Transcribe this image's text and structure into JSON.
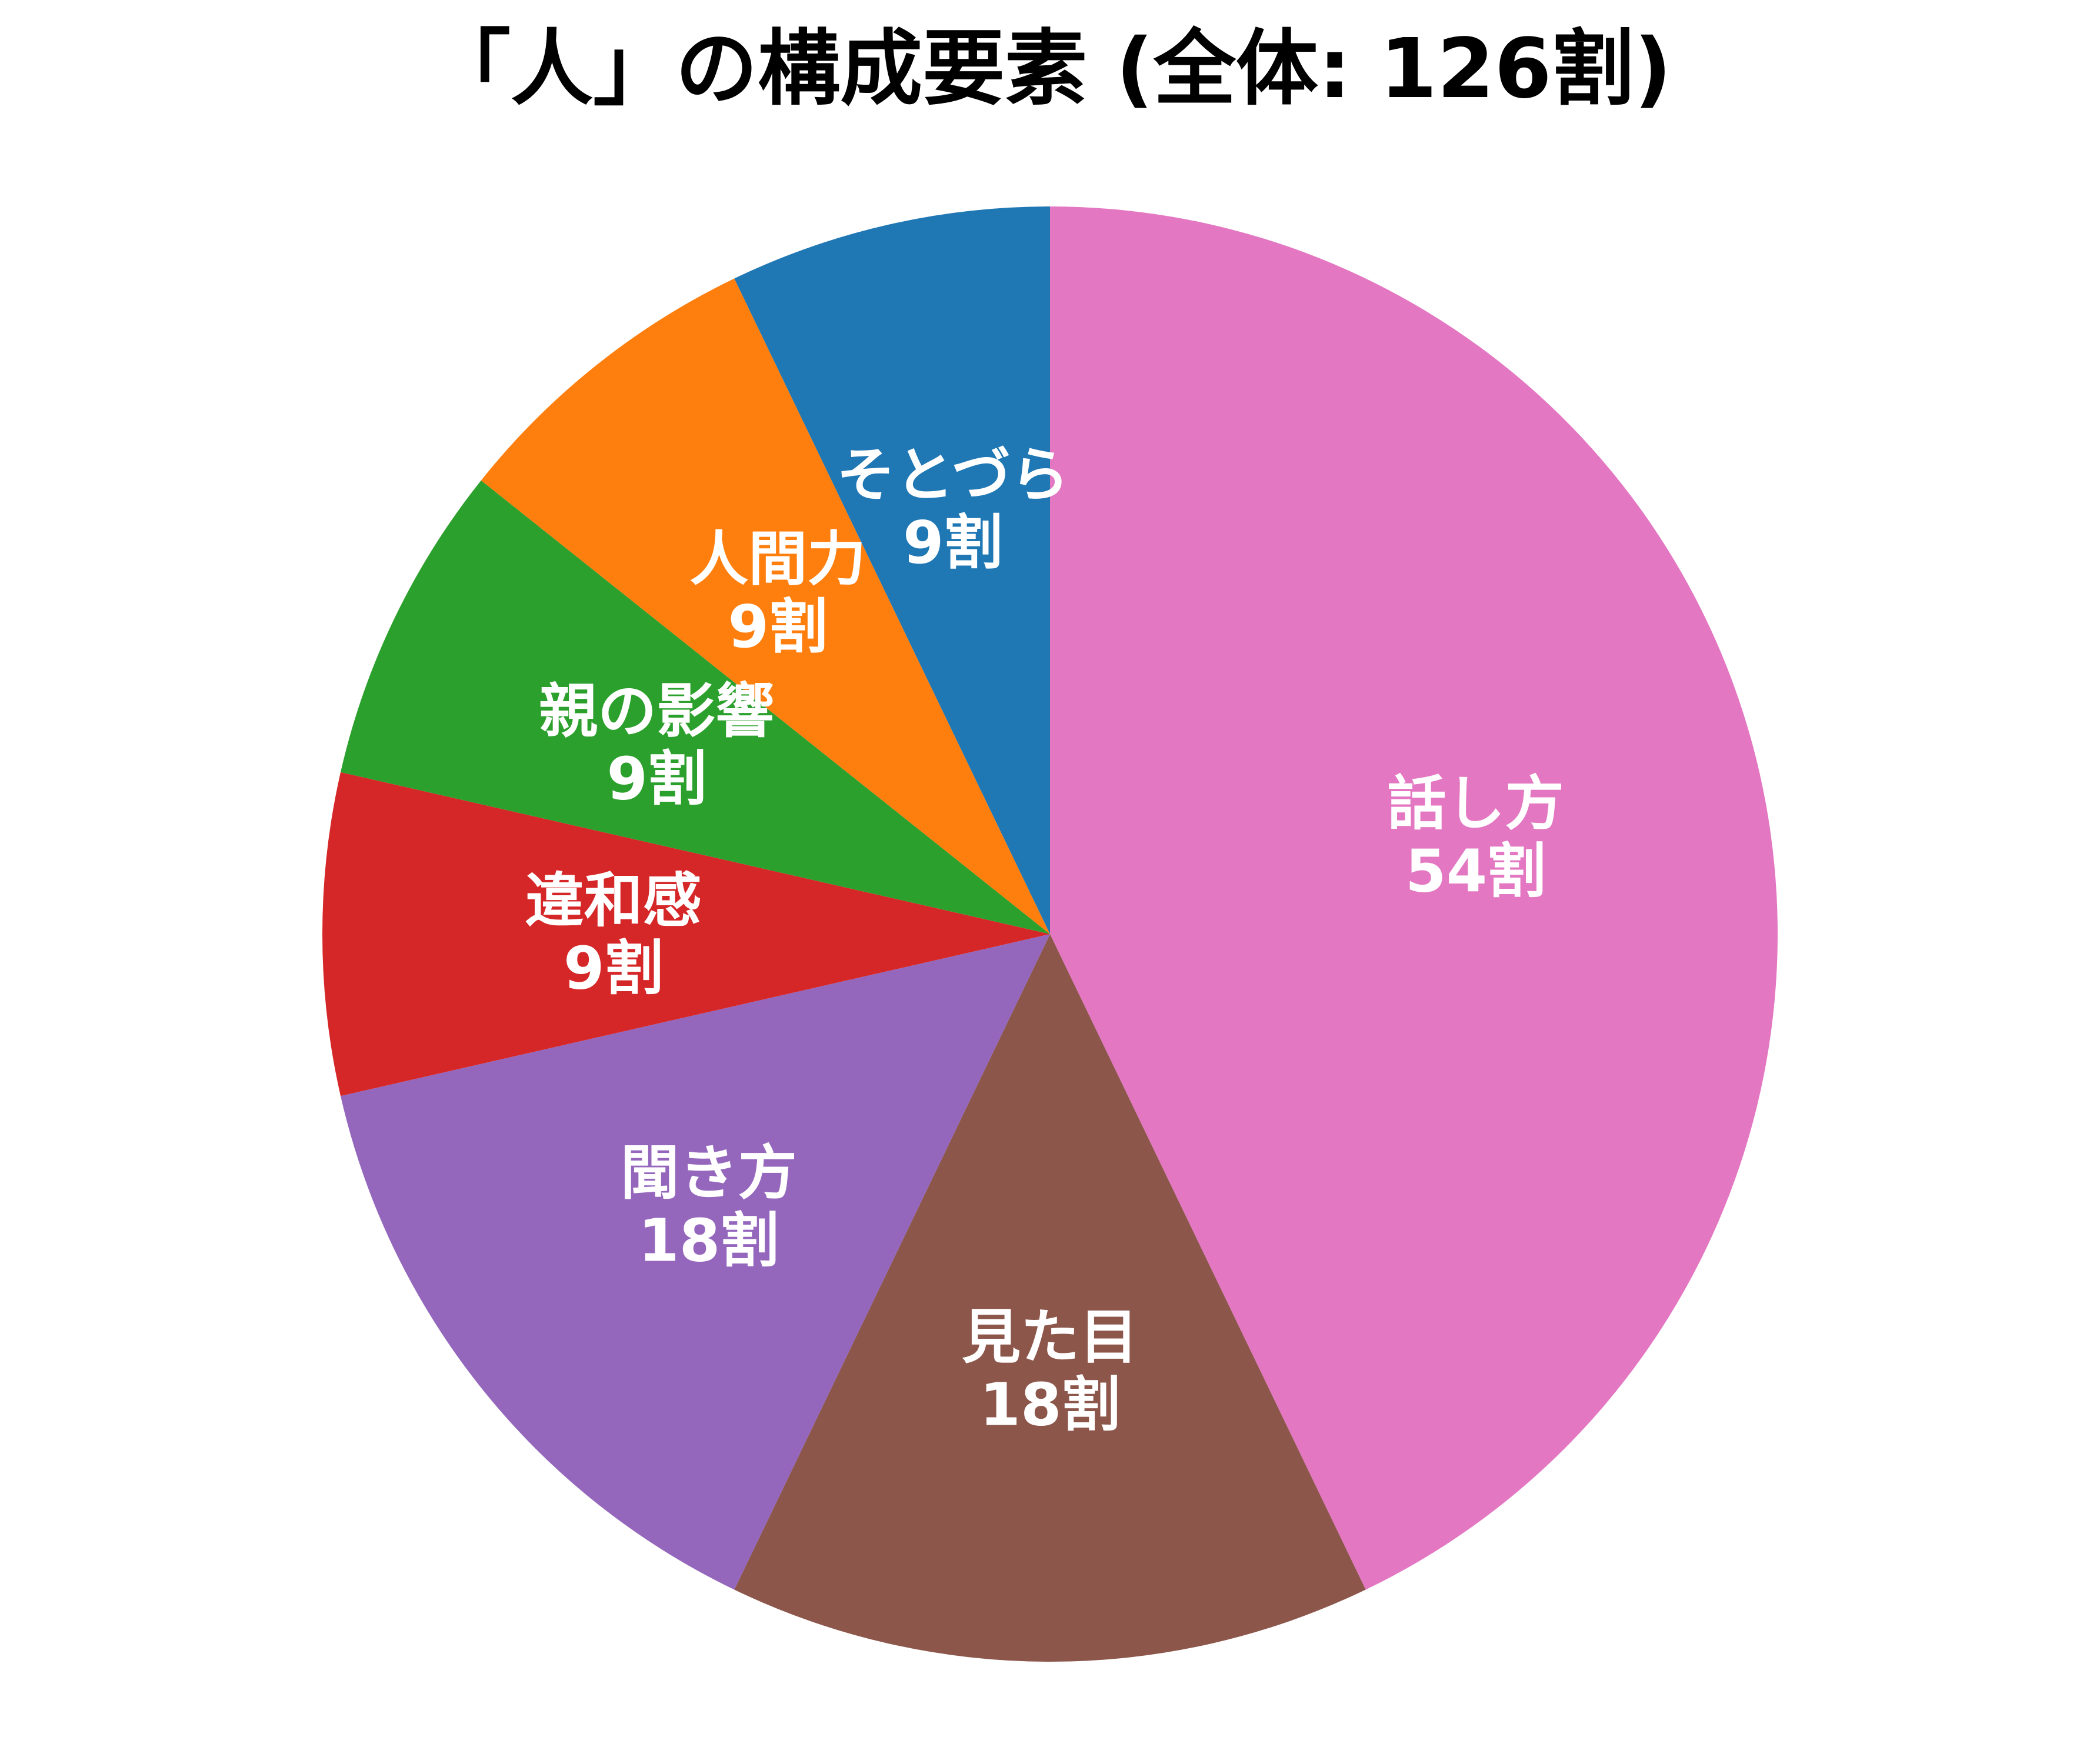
{
  "chart_data": {
    "type": "pie",
    "title": "「人」の構成要素 (全体: 126割)",
    "value_suffix": "割",
    "start_angle_deg": 90,
    "direction": "clockwise",
    "slices": [
      {
        "label": "話し方",
        "value": 54,
        "color": "#e377c2"
      },
      {
        "label": "見た目",
        "value": 18,
        "color": "#8c564b"
      },
      {
        "label": "聞き方",
        "value": 18,
        "color": "#9467bd"
      },
      {
        "label": "違和感",
        "value": 9,
        "color": "#d62728"
      },
      {
        "label": "親の影響",
        "value": 9,
        "color": "#2ca02c"
      },
      {
        "label": "人間力",
        "value": 9,
        "color": "#ff7f0e"
      },
      {
        "label": "そとづら",
        "value": 9,
        "color": "#1f77b4"
      }
    ]
  }
}
